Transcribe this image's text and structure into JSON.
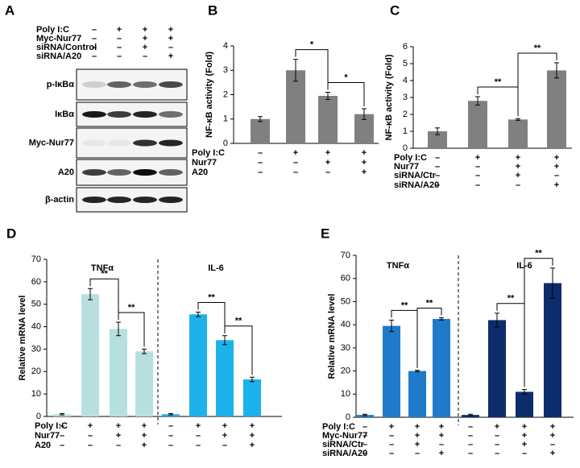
{
  "blot": {
    "panel": "A",
    "conditions": [
      {
        "name": "Poly I:C",
        "values": [
          "–",
          "+",
          "+",
          "+"
        ]
      },
      {
        "name": "Myc-Nur77",
        "values": [
          "–",
          "–",
          "+",
          "+"
        ]
      },
      {
        "name": "siRNA/Control",
        "values": [
          "–",
          "–",
          "+",
          "–"
        ]
      },
      {
        "name": "siRNA/A20",
        "values": [
          "–",
          "–",
          "–",
          "+"
        ]
      }
    ],
    "bands": [
      "p-IκBα",
      "IκBα",
      "Myc-Nur77",
      "A20",
      "β-actin"
    ]
  },
  "chart_data": [
    {
      "type": "bar",
      "panel": "B",
      "y_label": "NF-κB activity (Fold)",
      "color": "#808080",
      "values": [
        1.0,
        3.0,
        1.95,
        1.2
      ],
      "errors": [
        0.1,
        0.45,
        0.15,
        0.22
      ],
      "ylim": [
        0,
        4
      ],
      "yticks": [
        0,
        1,
        2,
        3,
        4
      ],
      "annotations": [
        "*",
        "*"
      ],
      "conditions": [
        {
          "name": "Poly I:C",
          "values": [
            "–",
            "+",
            "+",
            "+"
          ]
        },
        {
          "name": "Nur77",
          "values": [
            "–",
            "–",
            "+",
            "+"
          ]
        },
        {
          "name": "A20",
          "values": [
            "–",
            "–",
            "–",
            "+"
          ]
        }
      ]
    },
    {
      "type": "bar",
      "panel": "C",
      "y_label": "NF-κB activity (Fold)",
      "color": "#808080",
      "values": [
        1.0,
        2.8,
        1.7,
        4.6
      ],
      "errors": [
        0.2,
        0.25,
        0.05,
        0.45
      ],
      "ylim": [
        0,
        6
      ],
      "yticks": [
        0,
        1,
        2,
        3,
        4,
        5,
        6
      ],
      "annotations": [
        "**",
        "**"
      ],
      "conditions": [
        {
          "name": "Poly I:C",
          "values": [
            "–",
            "+",
            "+",
            "+"
          ]
        },
        {
          "name": "Nur77",
          "values": [
            "–",
            "–",
            "+",
            "+"
          ]
        },
        {
          "name": "siRNA/Ctr",
          "values": [
            "–",
            "–",
            "+",
            "–"
          ]
        },
        {
          "name": "siRNA/A20",
          "values": [
            "–",
            "–",
            "–",
            "+"
          ]
        }
      ]
    },
    {
      "type": "bar",
      "panel": "D",
      "y_label": "Relative mRNA level",
      "groups": [
        {
          "name": "TNFα",
          "color": "#b7dfe0"
        },
        {
          "name": "IL-6",
          "color": "#1db2ec"
        }
      ],
      "values": [
        1,
        54.5,
        39,
        29,
        1,
        45.5,
        34,
        16.5
      ],
      "errors": [
        0.3,
        2.5,
        3,
        1,
        0.3,
        1,
        2,
        1
      ],
      "ylim": [
        0,
        70
      ],
      "yticks": [
        0,
        10,
        20,
        30,
        40,
        50,
        60,
        70
      ],
      "annotations": [
        "**",
        "**",
        "**",
        "**"
      ],
      "conditions": [
        {
          "name": "Poly I:C",
          "values": [
            "–",
            "+",
            "+",
            "+",
            "–",
            "+",
            "+",
            "+"
          ]
        },
        {
          "name": "Nur77",
          "values": [
            "–",
            "–",
            "+",
            "+",
            "–",
            "–",
            "+",
            "+"
          ]
        },
        {
          "name": "A20",
          "values": [
            "–",
            "–",
            "–",
            "+",
            "–",
            "–",
            "–",
            "+"
          ]
        }
      ]
    },
    {
      "type": "bar",
      "panel": "E",
      "y_label": "Relative mRNA level",
      "groups": [
        {
          "name": "TNFα",
          "color": "#1f7bc9"
        },
        {
          "name": "IL-6",
          "color": "#0d2c6c"
        }
      ],
      "values": [
        1,
        39.5,
        20,
        42.5,
        1,
        42,
        11,
        58
      ],
      "errors": [
        0.3,
        2.5,
        0.3,
        0.5,
        0.3,
        3,
        1,
        6.5
      ],
      "ylim": [
        0,
        70
      ],
      "yticks": [
        0,
        10,
        20,
        30,
        40,
        50,
        60,
        70
      ],
      "annotations": [
        "**",
        "**",
        "**",
        "**"
      ],
      "conditions": [
        {
          "name": "Poly I:C",
          "values": [
            "–",
            "+",
            "+",
            "+",
            "–",
            "+",
            "+",
            "+"
          ]
        },
        {
          "name": "Myc-Nur77",
          "values": [
            "–",
            "–",
            "+",
            "+",
            "–",
            "–",
            "+",
            "+"
          ]
        },
        {
          "name": "siRNA/Ctr",
          "values": [
            "–",
            "–",
            "+",
            "–",
            "–",
            "–",
            "+",
            "–"
          ]
        },
        {
          "name": "siRNA/A20",
          "values": [
            "–",
            "–",
            "–",
            "+",
            "–",
            "–",
            "–",
            "+"
          ]
        }
      ]
    }
  ]
}
